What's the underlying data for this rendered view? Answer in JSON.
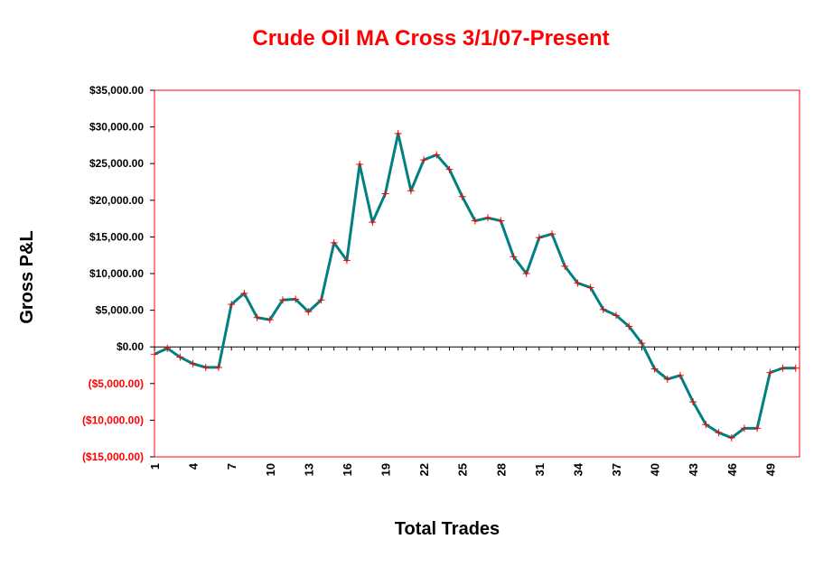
{
  "chart_data": {
    "type": "line",
    "title": "Crude Oil MA Cross 3/1/07-Present",
    "xlabel": "Total Trades",
    "ylabel": "Gross P&L",
    "ylim": [
      -15000,
      35000
    ],
    "yticks": [
      -15000,
      -10000,
      -5000,
      0,
      5000,
      10000,
      15000,
      20000,
      25000,
      30000,
      35000
    ],
    "ytick_labels": [
      "($15,000.00)",
      "($10,000.00)",
      "($5,000.00)",
      "$0.00",
      "$5,000.00",
      "$10,000.00",
      "$15,000.00",
      "$20,000.00",
      "$25,000.00",
      "$30,000.00",
      "$35,000.00"
    ],
    "xtick_labels": [
      "1",
      "4",
      "7",
      "10",
      "13",
      "16",
      "19",
      "22",
      "25",
      "28",
      "31",
      "34",
      "37",
      "40",
      "43",
      "46",
      "49"
    ],
    "x": [
      1,
      2,
      3,
      4,
      5,
      6,
      7,
      8,
      9,
      10,
      11,
      12,
      13,
      14,
      15,
      16,
      17,
      18,
      19,
      20,
      21,
      22,
      23,
      24,
      25,
      26,
      27,
      28,
      29,
      30,
      31,
      32,
      33,
      34,
      35,
      36,
      37,
      38,
      39,
      40,
      41,
      42,
      43,
      44,
      45,
      46,
      47,
      48,
      49,
      50,
      51
    ],
    "series": [
      {
        "values": [
          -1000,
          -200,
          -1400,
          -2300,
          -2800,
          -2800,
          5800,
          7300,
          4000,
          3700,
          6400,
          6500,
          4800,
          6400,
          14200,
          11800,
          24900,
          17000,
          20900,
          29100,
          21300,
          25500,
          26200,
          24200,
          20500,
          17200,
          17600,
          17200,
          12300,
          10000,
          14900,
          15400,
          11000,
          8700,
          8100,
          5100,
          4300,
          2800,
          500,
          -3000,
          -4400,
          -3900,
          -7500,
          -10600,
          -11700,
          -12400,
          -11100,
          -11100,
          -3500,
          -2900,
          -2900
        ]
      }
    ],
    "colors": {
      "line": "#008080",
      "markers": "#ff0000",
      "title": "#ff0000",
      "frame": "#ff0000",
      "negative_tick_labels": "#ff0000",
      "positive_tick_labels": "#000000"
    },
    "grid": false,
    "legend": "none"
  }
}
